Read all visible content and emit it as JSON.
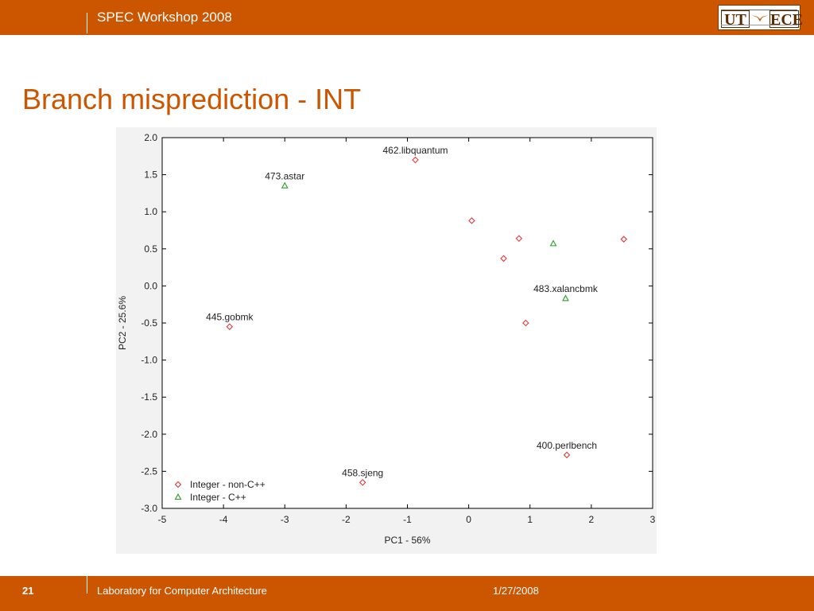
{
  "header": {
    "title": "SPEC Workshop 2008",
    "logo": {
      "left": "UT",
      "right": "ECE",
      "accent": "#cc5500"
    }
  },
  "slide": {
    "title": "Branch misprediction - INT"
  },
  "footer": {
    "page_number": "21",
    "lab": "Laboratory for Computer Architecture",
    "date": "1/27/2008"
  },
  "colors": {
    "brand": "#cc5500",
    "nonCpp": "#e0393e",
    "cpp": "#2e9e2e"
  },
  "chart_data": {
    "type": "scatter",
    "title": "",
    "xlabel": "PC1 - 56%",
    "ylabel": "PC2 - 25.6%",
    "xlim": [
      -5,
      3
    ],
    "ylim": [
      -3.0,
      2.0
    ],
    "xticks": [
      "-5",
      "-4",
      "-3",
      "-2",
      "-1",
      "0",
      "1",
      "2",
      "3"
    ],
    "yticks": [
      "2.0",
      "1.5",
      "1.0",
      "0.5",
      "0.0",
      "-0.5",
      "-1.0",
      "-1.5",
      "-2.0",
      "-2.5",
      "-3.0"
    ],
    "grid": false,
    "legend_position": "bottom-left",
    "series": [
      {
        "name": "Integer - non-C++",
        "marker": "diamond",
        "color": "#e0393e",
        "points": [
          {
            "x": -0.87,
            "y": 1.7,
            "label": "462.libquantum"
          },
          {
            "x": 0.05,
            "y": 0.88,
            "label": ""
          },
          {
            "x": 0.82,
            "y": 0.64,
            "label": ""
          },
          {
            "x": 0.57,
            "y": 0.37,
            "label": ""
          },
          {
            "x": 2.53,
            "y": 0.63,
            "label": ""
          },
          {
            "x": 0.93,
            "y": -0.5,
            "label": ""
          },
          {
            "x": -3.9,
            "y": -0.55,
            "label": "445.gobmk"
          },
          {
            "x": 1.6,
            "y": -2.28,
            "label": "400.perlbench"
          },
          {
            "x": -1.73,
            "y": -2.65,
            "label": "458.sjeng"
          }
        ]
      },
      {
        "name": "Integer - C++",
        "marker": "triangle",
        "color": "#2e9e2e",
        "points": [
          {
            "x": -3.0,
            "y": 1.35,
            "label": "473.astar"
          },
          {
            "x": 1.38,
            "y": 0.57,
            "label": ""
          },
          {
            "x": 1.58,
            "y": -0.17,
            "label": "483.xalancbmk"
          }
        ]
      }
    ]
  }
}
